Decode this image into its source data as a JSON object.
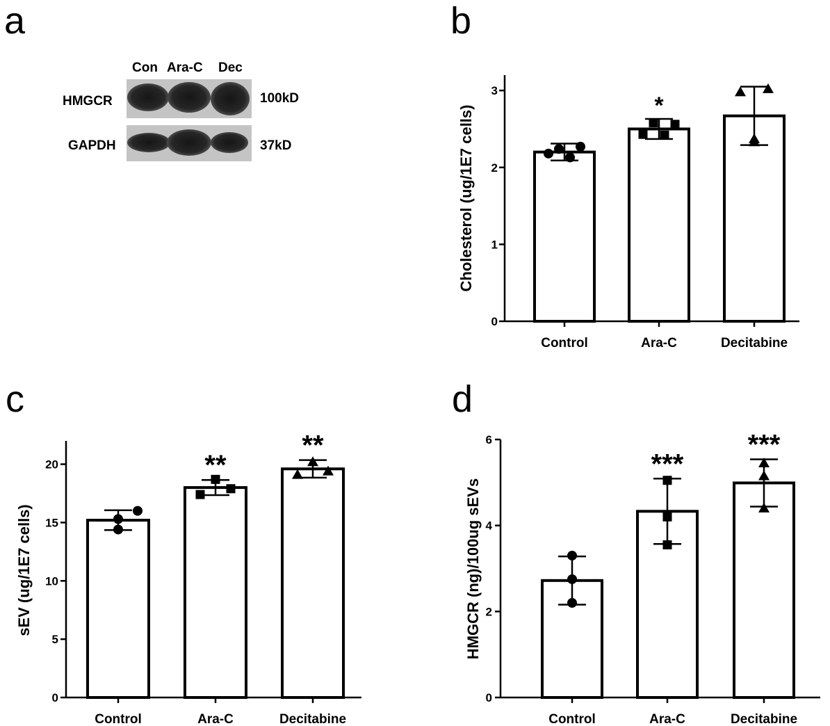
{
  "panels": [
    {
      "letter": "a"
    },
    {
      "letter": "b"
    },
    {
      "letter": "c"
    },
    {
      "letter": "d"
    }
  ],
  "western_blot": {
    "lanes": [
      "Con",
      "Ara-C",
      "Dec"
    ],
    "rows": [
      {
        "protein": "HMGCR",
        "size": "100kD"
      },
      {
        "protein": "GAPDH",
        "size": "37kD"
      }
    ]
  },
  "chart_data": [
    {
      "panel": "b",
      "type": "bar",
      "categories": [
        "Control",
        "Ara-C",
        "Decitabine"
      ],
      "values": [
        2.2,
        2.5,
        2.67
      ],
      "error_bars": [
        0.11,
        0.13,
        0.38
      ],
      "points": [
        [
          2.18,
          2.24,
          2.13,
          2.27
        ],
        [
          2.43,
          2.58,
          2.42,
          2.56
        ],
        [
          2.98,
          2.33,
          3.02,
          2.37
        ]
      ],
      "markers": [
        "circle",
        "square",
        "triangle"
      ],
      "significance": [
        "",
        "*",
        ""
      ],
      "ylabel": "Cholesterol (ug/1E7 cells)",
      "yticks": [
        "0",
        "1",
        "2",
        "3"
      ],
      "ylim": [
        0,
        3.2
      ]
    },
    {
      "panel": "c",
      "type": "bar",
      "categories": [
        "Control",
        "Ara-C",
        "Decitabine"
      ],
      "values": [
        15.2,
        18.0,
        19.6
      ],
      "error_bars": [
        0.85,
        0.65,
        0.75
      ],
      "points": [
        [
          15.3,
          16.0,
          14.4
        ],
        [
          17.4,
          18.7,
          17.9
        ],
        [
          19.1,
          20.2,
          19.4
        ]
      ],
      "markers": [
        "circle",
        "square",
        "triangle"
      ],
      "significance": [
        "",
        "**",
        "**"
      ],
      "ylabel": "sEV (ug/1E7 cells)",
      "yticks": [
        "0",
        "5",
        "10",
        "15",
        "20"
      ],
      "ylim": [
        0,
        22
      ]
    },
    {
      "panel": "d",
      "type": "bar",
      "categories": [
        "Control",
        "Ara-C",
        "Decitabine"
      ],
      "values": [
        2.72,
        4.33,
        4.99
      ],
      "error_bars": [
        0.56,
        0.76,
        0.55
      ],
      "points": [
        [
          3.3,
          2.75,
          2.2
        ],
        [
          5.05,
          4.2,
          3.55
        ],
        [
          5.45,
          5.15,
          4.4
        ]
      ],
      "markers": [
        "circle",
        "square",
        "triangle"
      ],
      "significance": [
        "",
        "***",
        "***"
      ],
      "ylabel": "HMGCR (ng)/100ug sEVs",
      "yticks": [
        "0",
        "2",
        "4",
        "6"
      ],
      "ylim": [
        0,
        6
      ]
    }
  ]
}
